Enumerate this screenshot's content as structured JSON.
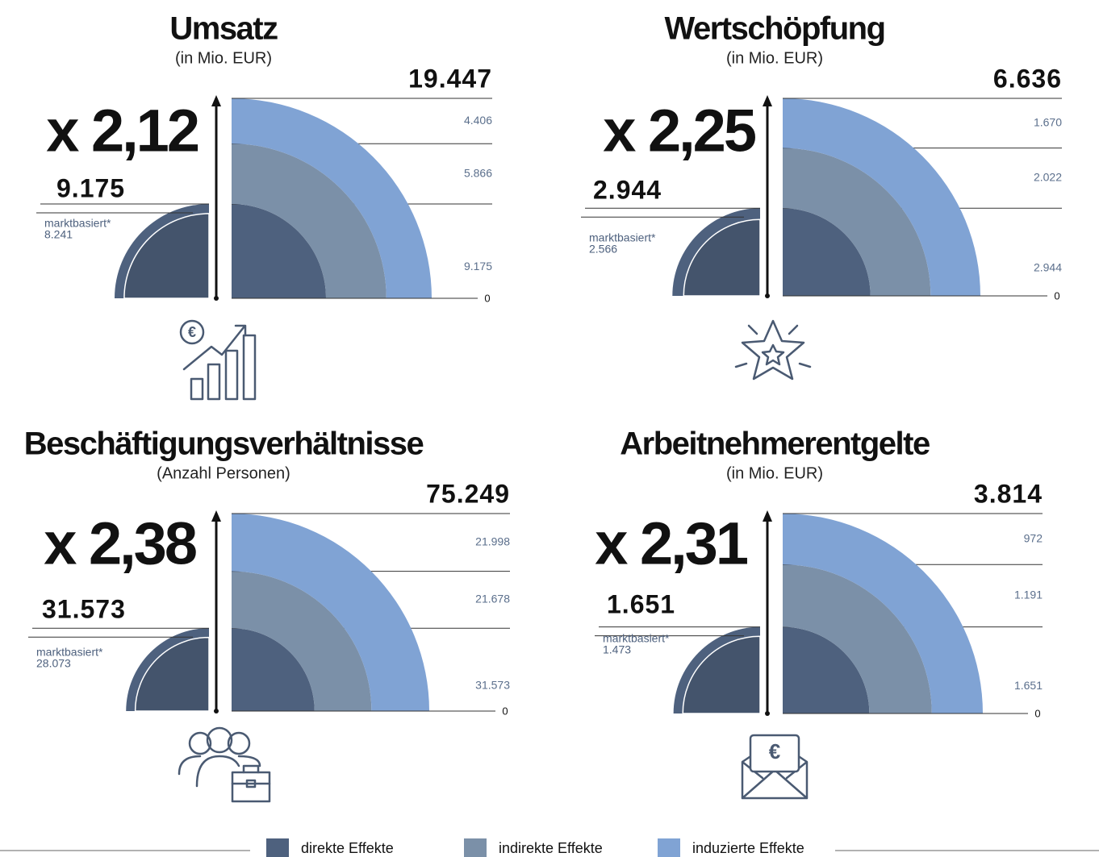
{
  "legend": [
    {
      "name": "direkte Effekte",
      "color": "#4e617e"
    },
    {
      "name": "indirekte Effekte",
      "color": "#7b90a8"
    },
    {
      "name": "induzierte Effekte",
      "color": "#80a3d4"
    }
  ],
  "chart_data": [
    {
      "type": "quarter-circle",
      "title": "Umsatz",
      "subtitle": "(in Mio. EUR)",
      "multiplier": "x 2,12",
      "total": {
        "value": 19447,
        "label": "19.447"
      },
      "values": [
        9175,
        5866,
        4406
      ],
      "value_labels": [
        "9.175",
        "5.866",
        "4.406"
      ],
      "marktbasiert": {
        "label": "marktbasiert*",
        "value": 8241,
        "value_label": "8.241"
      },
      "ylim": [
        0,
        19447
      ],
      "yticks": [
        0
      ]
    },
    {
      "type": "quarter-circle",
      "title": "Wertschöpfung",
      "subtitle": "(in Mio. EUR)",
      "multiplier": "x 2,25",
      "total": {
        "value": 6636,
        "label": "6.636"
      },
      "values": [
        2944,
        2022,
        1670
      ],
      "value_labels": [
        "2.944",
        "2.022",
        "1.670"
      ],
      "marktbasiert": {
        "label": "marktbasiert*",
        "value": 2566,
        "value_label": "2.566"
      },
      "ylim": [
        0,
        6636
      ],
      "yticks": [
        0
      ]
    },
    {
      "type": "quarter-circle",
      "title": "Beschäftigungsverhältnisse",
      "subtitle": "(Anzahl Personen)",
      "multiplier": "x 2,38",
      "total": {
        "value": 75249,
        "label": "75.249"
      },
      "values": [
        31573,
        21678,
        21998
      ],
      "value_labels": [
        "31.573",
        "21.678",
        "21.998"
      ],
      "marktbasiert": {
        "label": "marktbasiert*",
        "value": 28073,
        "value_label": "28.073"
      },
      "ylim": [
        0,
        75249
      ],
      "yticks": [
        0
      ]
    },
    {
      "type": "quarter-circle",
      "title": "Arbeitnehmerentgelte",
      "subtitle": "(in Mio. EUR)",
      "multiplier": "x 2,31",
      "total": {
        "value": 3814,
        "label": "3.814"
      },
      "values": [
        1651,
        1191,
        972
      ],
      "value_labels": [
        "1.651",
        "1.191",
        "972"
      ],
      "marktbasiert": {
        "label": "marktbasiert*",
        "value": 1473,
        "value_label": "1.473"
      },
      "ylim": [
        0,
        3814
      ],
      "yticks": [
        0
      ]
    }
  ]
}
